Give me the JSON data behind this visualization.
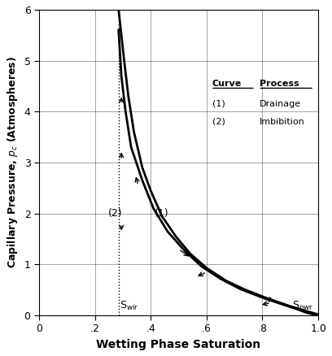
{
  "xlabel": "Wetting Phase Saturation",
  "ylabel": "Capillary Pressure, p$_c$ (Atmospheres)",
  "xlim": [
    0,
    1.0
  ],
  "ylim": [
    0,
    6
  ],
  "xticks": [
    0,
    0.2,
    0.4,
    0.6,
    0.8,
    1.0
  ],
  "xticklabels": [
    "0",
    ".2",
    ".4",
    ".6",
    ".8",
    "1.0"
  ],
  "yticks": [
    0,
    1,
    2,
    3,
    4,
    5,
    6
  ],
  "Swir": 0.285,
  "Snwr": 0.9,
  "background": "#ffffff",
  "curve_color": "#000000",
  "curve_lw": 2.0,
  "sw_drain": [
    0.285,
    0.295,
    0.305,
    0.32,
    0.34,
    0.37,
    0.4,
    0.44,
    0.49,
    0.54,
    0.6,
    0.67,
    0.74,
    0.82,
    0.9,
    0.96,
    1.0
  ],
  "pc_drain": [
    6.0,
    5.5,
    5.0,
    4.3,
    3.6,
    2.9,
    2.45,
    1.95,
    1.55,
    1.22,
    0.93,
    0.68,
    0.5,
    0.33,
    0.18,
    0.08,
    0.02
  ],
  "sw_imb": [
    0.285,
    0.295,
    0.31,
    0.33,
    0.37,
    0.41,
    0.46,
    0.52,
    0.58,
    0.65,
    0.72,
    0.8,
    0.87,
    0.92,
    0.96,
    1.0
  ],
  "pc_imb": [
    5.6,
    4.7,
    4.0,
    3.3,
    2.65,
    2.1,
    1.65,
    1.28,
    0.97,
    0.72,
    0.52,
    0.35,
    0.22,
    0.13,
    0.05,
    0.0
  ]
}
